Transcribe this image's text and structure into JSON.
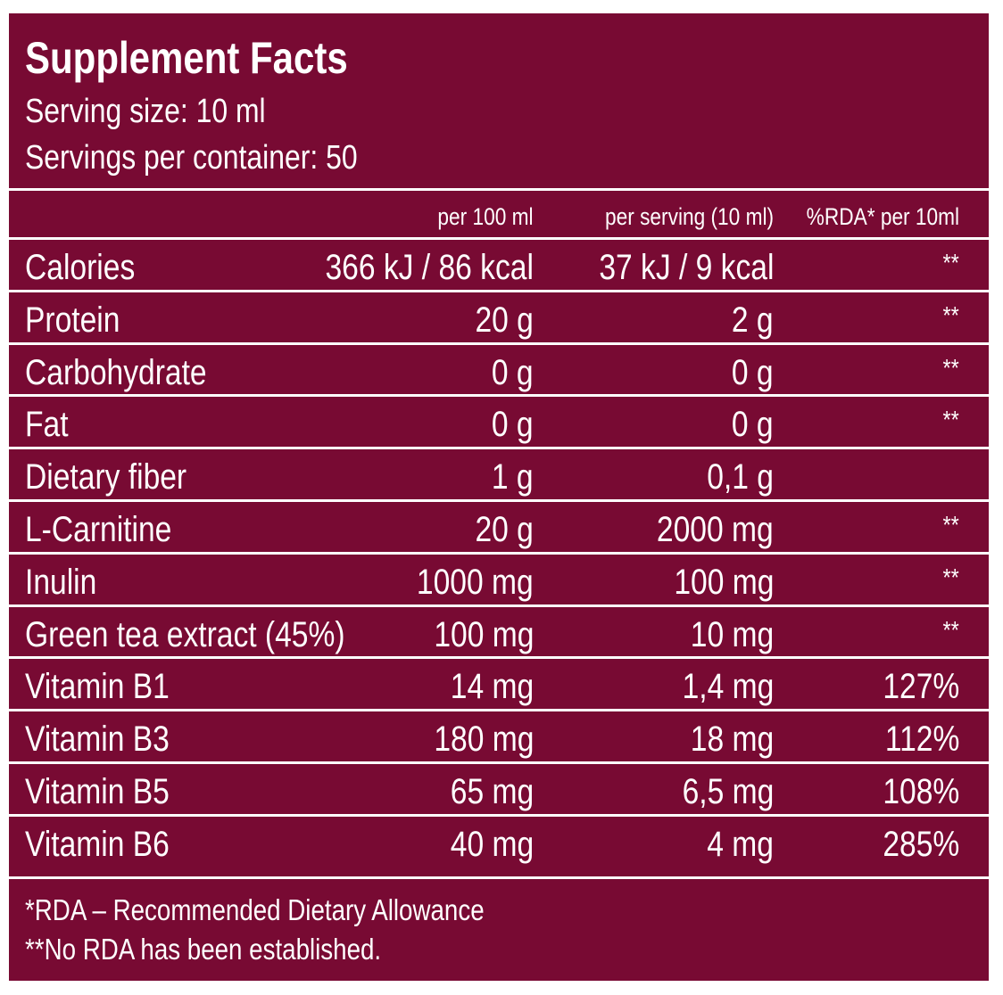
{
  "header": {
    "title": "Supplement Facts",
    "serving_size": "Serving size: 10 ml",
    "servings_per_container": "Servings per container: 50"
  },
  "table": {
    "columns": [
      "per 100 ml",
      "per serving (10 ml)",
      "%RDA* per 10ml"
    ],
    "rows": [
      [
        "Calories",
        "366 kJ / 86 kcal",
        "37 kJ / 9 kcal",
        "**"
      ],
      [
        "Protein",
        "20 g",
        "2 g",
        "**"
      ],
      [
        "Carbohydrate",
        "0 g",
        "0 g",
        "**"
      ],
      [
        "Fat",
        "0 g",
        "0 g",
        "**"
      ],
      [
        "Dietary fiber",
        "1 g",
        "0,1 g",
        null
      ],
      [
        "L-Carnitine",
        "20 g",
        "2000 mg",
        "**"
      ],
      [
        "Inulin",
        "1000 mg",
        "100 mg",
        "**"
      ],
      [
        "Green tea extract (45%)",
        "100 mg",
        "10 mg",
        "**"
      ],
      [
        "Vitamin B1",
        "14 mg",
        "1,4 mg",
        "127%"
      ],
      [
        "Vitamin B3",
        "180 mg",
        "18 mg",
        "112%"
      ],
      [
        "Vitamin B5",
        "65 mg",
        "6,5 mg",
        "108%"
      ],
      [
        "Vitamin B6",
        "40 mg",
        "4 mg",
        "285%"
      ]
    ]
  },
  "footnotes": [
    "*RDA – Recommended Dietary Allowance",
    "**No RDA has been established."
  ]
}
